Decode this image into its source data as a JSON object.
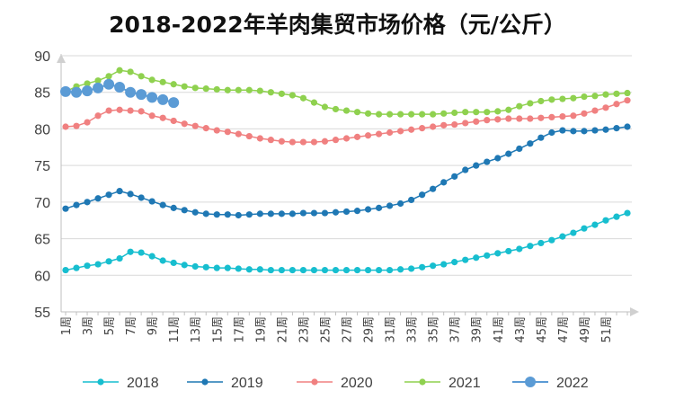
{
  "chart_data": {
    "type": "line",
    "title": "2018-2022年羊肉集贸市场价格（元/公斤）",
    "xlabel": "",
    "ylabel": "",
    "ylim": [
      55,
      90
    ],
    "yticks": [
      55,
      60,
      65,
      70,
      75,
      80,
      85,
      90
    ],
    "grid": true,
    "legend_position": "bottom",
    "x_tick_labels": [
      "1周",
      "3周",
      "5周",
      "7周",
      "9周",
      "11周",
      "13周",
      "15周",
      "17周",
      "19周",
      "21周",
      "23周",
      "25周",
      "27周",
      "29周",
      "31周",
      "33周",
      "35周",
      "37周",
      "39周",
      "41周",
      "43周",
      "45周",
      "47周",
      "49周",
      "51周"
    ],
    "series": [
      {
        "name": "2018",
        "color": "#17becf",
        "values": [
          60.7,
          61.0,
          61.3,
          61.5,
          61.9,
          62.3,
          63.2,
          63.1,
          62.6,
          62.0,
          61.7,
          61.4,
          61.2,
          61.1,
          61.0,
          61.0,
          60.9,
          60.8,
          60.8,
          60.7,
          60.7,
          60.7,
          60.7,
          60.7,
          60.7,
          60.7,
          60.7,
          60.7,
          60.7,
          60.7,
          60.7,
          60.8,
          60.9,
          61.1,
          61.3,
          61.5,
          61.8,
          62.1,
          62.4,
          62.7,
          63.0,
          63.3,
          63.6,
          64.0,
          64.4,
          64.8,
          65.3,
          65.8,
          66.4,
          66.9,
          67.5,
          68.0,
          68.5
        ]
      },
      {
        "name": "2019",
        "color": "#1f78b4",
        "values": [
          69.1,
          69.6,
          70.0,
          70.5,
          71.0,
          71.5,
          71.1,
          70.6,
          70.1,
          69.6,
          69.2,
          68.9,
          68.6,
          68.4,
          68.3,
          68.3,
          68.2,
          68.3,
          68.4,
          68.4,
          68.4,
          68.4,
          68.5,
          68.5,
          68.5,
          68.6,
          68.7,
          68.8,
          69.0,
          69.2,
          69.5,
          69.8,
          70.3,
          71.0,
          71.8,
          72.7,
          73.5,
          74.4,
          75.0,
          75.5,
          76.0,
          76.6,
          77.3,
          78.0,
          78.8,
          79.5,
          79.8,
          79.7,
          79.7,
          79.8,
          79.9,
          80.1,
          80.3
        ]
      },
      {
        "name": "2020",
        "color": "#f08080",
        "values": [
          80.3,
          80.4,
          80.9,
          81.8,
          82.5,
          82.6,
          82.5,
          82.4,
          81.8,
          81.5,
          81.1,
          80.7,
          80.4,
          80.1,
          79.8,
          79.6,
          79.3,
          79.0,
          78.7,
          78.5,
          78.3,
          78.2,
          78.2,
          78.2,
          78.3,
          78.5,
          78.7,
          78.9,
          79.1,
          79.3,
          79.5,
          79.7,
          79.9,
          80.1,
          80.3,
          80.5,
          80.6,
          80.8,
          81.0,
          81.2,
          81.3,
          81.4,
          81.4,
          81.4,
          81.5,
          81.6,
          81.7,
          81.8,
          82.1,
          82.5,
          82.9,
          83.4,
          83.9
        ]
      },
      {
        "name": "2021",
        "color": "#8fd14f",
        "values": [
          85.1,
          85.8,
          86.2,
          86.6,
          87.2,
          88.0,
          87.8,
          87.2,
          86.7,
          86.4,
          86.1,
          85.8,
          85.6,
          85.5,
          85.4,
          85.3,
          85.3,
          85.3,
          85.2,
          85.0,
          84.8,
          84.6,
          84.2,
          83.6,
          83.0,
          82.7,
          82.5,
          82.3,
          82.1,
          82.0,
          82.0,
          82.0,
          82.0,
          82.0,
          82.0,
          82.1,
          82.2,
          82.3,
          82.3,
          82.3,
          82.4,
          82.6,
          83.1,
          83.5,
          83.8,
          84.0,
          84.1,
          84.2,
          84.4,
          84.5,
          84.7,
          84.8,
          84.9
        ]
      },
      {
        "name": "2022",
        "color": "#5b9bd5",
        "values": [
          85.1,
          85.0,
          85.2,
          85.6,
          86.1,
          85.7,
          85.0,
          84.7,
          84.3,
          84.0,
          83.6
        ]
      }
    ]
  }
}
